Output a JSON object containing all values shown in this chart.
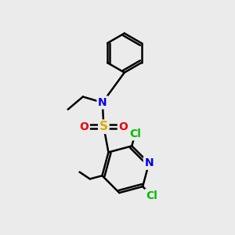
{
  "bg_color": "#ebebeb",
  "atom_colors": {
    "C": "#000000",
    "N": "#0000ee",
    "S": "#ddaa00",
    "O": "#ee0000",
    "Cl": "#00bb00"
  },
  "bond_color": "#000000",
  "bond_width": 1.8,
  "font_size": 10
}
